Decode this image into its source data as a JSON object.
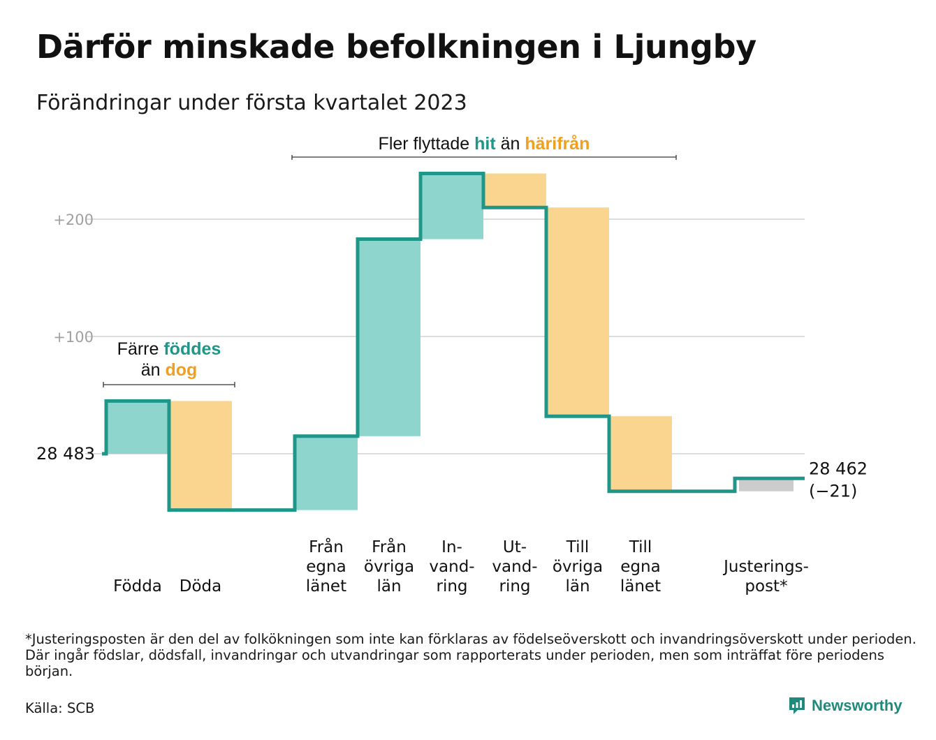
{
  "title": "Därför minskade befolkningen i Ljungby",
  "subtitle": "Förändringar under första kvartalet 2023",
  "footnote": "*Justeringsposten är den del av folkökningen som inte kan förklaras av födelseöverskott och invandringsöverskott under perioden. Där ingår födslar, dödsfall, invandringar och utvandringar som rapporterats under perioden, men som inträffat före periodens början.",
  "source": "Källa: SCB",
  "brand": {
    "name": "Newsworthy",
    "icon": "newsworthy-logo-icon"
  },
  "colors": {
    "in": "#8dd5cd",
    "out": "#f9d58f",
    "adjust": "#cccccc",
    "line": "#1f9688",
    "hit": "#1f9688",
    "harifran": "#f0a020",
    "grid": "#dddddd",
    "tick": "#a0a0a0"
  },
  "chart_data": {
    "type": "bar",
    "subtype": "waterfall",
    "start": 28483,
    "end": 28462,
    "start_label": "28 483",
    "end_label": "28 462",
    "end_change_label": "(−21)",
    "yticks": [
      {
        "value": 100,
        "label": "+100"
      },
      {
        "value": 200,
        "label": "+200"
      }
    ],
    "ylim": [
      -55,
      240
    ],
    "grid": true,
    "steps": [
      {
        "label": [
          "Födda"
        ],
        "delta": 45,
        "kind": "in"
      },
      {
        "label": [
          "Döda"
        ],
        "delta": -93,
        "kind": "out"
      },
      {
        "label": [
          "Från",
          "egna",
          "länet"
        ],
        "delta": 63,
        "kind": "in",
        "gap_before": true
      },
      {
        "label": [
          "Från",
          "övriga",
          "län"
        ],
        "delta": 168,
        "kind": "in"
      },
      {
        "label": [
          "In-",
          "vand-",
          "ring"
        ],
        "delta": 56,
        "kind": "in"
      },
      {
        "label": [
          "Ut-",
          "vand-",
          "ring"
        ],
        "delta": -29,
        "kind": "out"
      },
      {
        "label": [
          "Till",
          "övriga",
          "län"
        ],
        "delta": -178,
        "kind": "out"
      },
      {
        "label": [
          "Till",
          "egna",
          "länet"
        ],
        "delta": -64,
        "kind": "out"
      },
      {
        "label": [
          "Justerings-",
          "post*"
        ],
        "delta": 11,
        "kind": "adjust",
        "gap_before": true
      }
    ],
    "annotations": [
      {
        "parts": [
          {
            "text": "Färre ",
            "style": "plain"
          },
          {
            "text": "föddes",
            "style": "hit"
          }
        ],
        "parts2": [
          {
            "text": "än ",
            "style": "plain"
          },
          {
            "text": "dog",
            "style": "harifran"
          }
        ],
        "span": [
          0,
          1
        ]
      },
      {
        "parts": [
          {
            "text": "Fler flyttade ",
            "style": "plain"
          },
          {
            "text": "hit",
            "style": "hit"
          },
          {
            "text": " än ",
            "style": "plain"
          },
          {
            "text": "härifrån",
            "style": "harifran"
          }
        ],
        "span": [
          2,
          7
        ]
      }
    ]
  }
}
